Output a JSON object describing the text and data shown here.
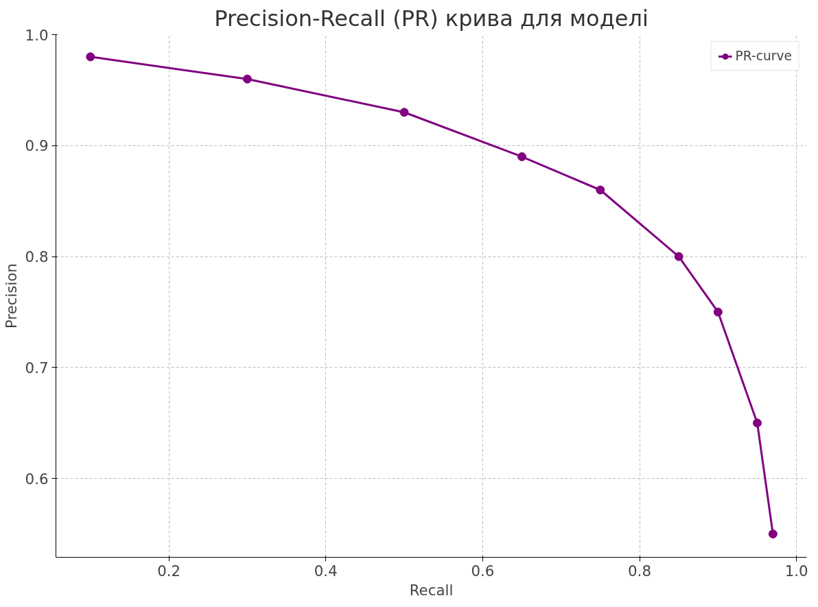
{
  "chart_data": {
    "type": "line",
    "title": "Precision-Recall (PR) крива для моделі",
    "xlabel": "Recall",
    "ylabel": "Precision",
    "x": [
      0.1,
      0.3,
      0.5,
      0.65,
      0.75,
      0.85,
      0.9,
      0.95,
      0.97
    ],
    "series": [
      {
        "name": "PR-curve",
        "color": "#800080",
        "values": [
          0.98,
          0.96,
          0.93,
          0.89,
          0.86,
          0.8,
          0.75,
          0.65,
          0.55
        ]
      }
    ],
    "xlim": [
      0.056,
      1.013
    ],
    "ylim": [
      0.529,
      1.0
    ],
    "xticks": [
      0.2,
      0.4,
      0.6,
      0.8,
      {
        "value": 1,
        "label": "1.0"
      }
    ],
    "yticks": [
      0.6,
      0.7,
      0.8,
      0.9,
      {
        "value": 1,
        "label": "1.0"
      }
    ],
    "grid": true,
    "legend": "top right",
    "marker": "circle",
    "line_style": "solid"
  }
}
